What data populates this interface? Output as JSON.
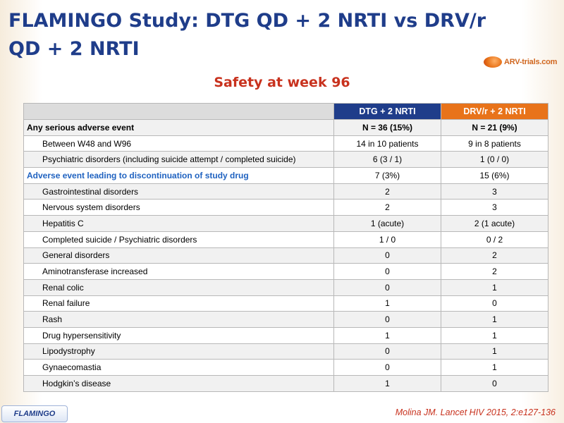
{
  "title": "FLAMINGO Study: DTG QD + 2 NRTI vs DRV/r QD + 2 NRTI",
  "logo": {
    "text": "ARV-trials.com",
    "accent": "#e8731a"
  },
  "subtitle": "Safety at week 96",
  "table": {
    "columns": [
      "",
      "DTG + 2 NRTI",
      "DRV/r + 2 NRTI"
    ],
    "header_colors": {
      "dtg": "#1f3d8a",
      "drv": "#e8731a"
    },
    "rows": [
      {
        "label": "Any serious adverse event",
        "dtg": "N = 36 (15%)",
        "drv": "N = 21 (9%)",
        "kind": "section"
      },
      {
        "label": "Between W48 and W96",
        "dtg": "14 in 10 patients",
        "drv": "9 in 8 patients",
        "kind": "sub"
      },
      {
        "label": "Psychiatric disorders (including suicide attempt / completed suicide)",
        "dtg": "6 (3 / 1)",
        "drv": "1 (0 / 0)",
        "kind": "sub"
      },
      {
        "label": "Adverse event leading to discontinuation of study drug",
        "dtg": "7 (3%)",
        "drv": "15 (6%)",
        "kind": "section-blue"
      },
      {
        "label": "Gastrointestinal disorders",
        "dtg": "2",
        "drv": "3",
        "kind": "sub"
      },
      {
        "label": "Nervous system disorders",
        "dtg": "2",
        "drv": "3",
        "kind": "sub"
      },
      {
        "label": "Hepatitis C",
        "dtg": "1 (acute)",
        "drv": "2 (1 acute)",
        "kind": "sub"
      },
      {
        "label": "Completed suicide / Psychiatric disorders",
        "dtg": "1 / 0",
        "drv": "0 / 2",
        "kind": "sub"
      },
      {
        "label": "General disorders",
        "dtg": "0",
        "drv": "2",
        "kind": "sub"
      },
      {
        "label": "Aminotransferase increased",
        "dtg": "0",
        "drv": "2",
        "kind": "sub"
      },
      {
        "label": "Renal colic",
        "dtg": "0",
        "drv": "1",
        "kind": "sub"
      },
      {
        "label": "Renal failure",
        "dtg": "1",
        "drv": "0",
        "kind": "sub"
      },
      {
        "label": "Rash",
        "dtg": "0",
        "drv": "1",
        "kind": "sub"
      },
      {
        "label": "Drug hypersensitivity",
        "dtg": "1",
        "drv": "1",
        "kind": "sub"
      },
      {
        "label": "Lipodystrophy",
        "dtg": "0",
        "drv": "1",
        "kind": "sub"
      },
      {
        "label": "Gynaecomastia",
        "dtg": "0",
        "drv": "1",
        "kind": "sub"
      },
      {
        "label": "Hodgkin’s disease",
        "dtg": "1",
        "drv": "0",
        "kind": "sub"
      }
    ]
  },
  "footer": {
    "tag": "FLAMINGO",
    "citation": "Molina JM. Lancet HIV 2015, 2:e127-136"
  }
}
